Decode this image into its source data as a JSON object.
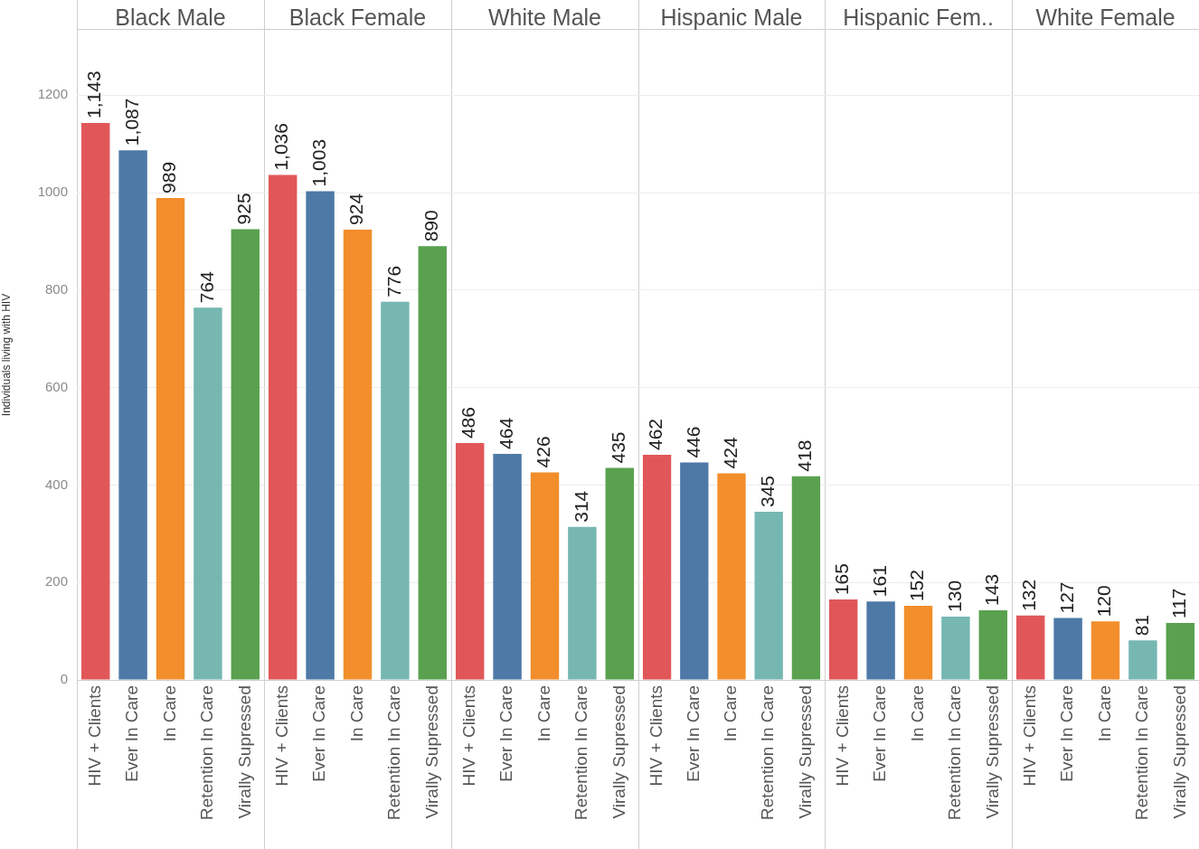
{
  "chart_data": [
    {
      "type": "bar",
      "title": "Black Male",
      "ylabel": "Individuals living with HIV",
      "categories": [
        "HIV + Clients",
        "Ever In Care",
        "In Care",
        "Retention In Care",
        "Virally Supressed"
      ],
      "values": [
        1143,
        1087,
        989,
        764,
        925
      ],
      "value_labels": [
        "1,143",
        "1,087",
        "989",
        "764",
        "925"
      ],
      "colors": [
        "#e15759",
        "#4e79a7",
        "#f28e2b",
        "#76b7b2",
        "#59a14f"
      ],
      "ylim": [
        0,
        1334
      ],
      "yticks": [
        0,
        200,
        400,
        600,
        800,
        1000,
        1200
      ],
      "grid": "y"
    },
    {
      "type": "bar",
      "title": "Black Female",
      "categories": [
        "HIV + Clients",
        "Ever In Care",
        "In Care",
        "Retention In Care",
        "Virally Supressed"
      ],
      "values": [
        1036,
        1003,
        924,
        776,
        890
      ],
      "value_labels": [
        "1,036",
        "1,003",
        "924",
        "776",
        "890"
      ],
      "colors": [
        "#e15759",
        "#4e79a7",
        "#f28e2b",
        "#76b7b2",
        "#59a14f"
      ],
      "ylim": [
        0,
        1334
      ],
      "yticks": [
        0,
        200,
        400,
        600,
        800,
        1000,
        1200
      ],
      "tick_labels": "x",
      "grid": "y"
    },
    {
      "type": "bar",
      "title": "White Male",
      "categories": [
        "HIV + Clients",
        "Ever In Care",
        "In Care",
        "Retention In Care",
        "Virally Supressed"
      ],
      "values": [
        486,
        464,
        426,
        314,
        435
      ],
      "value_labels": [
        "486",
        "464",
        "426",
        "314",
        "435"
      ],
      "colors": [
        "#e15759",
        "#4e79a7",
        "#f28e2b",
        "#76b7b2",
        "#59a14f"
      ],
      "ylim": [
        0,
        1334
      ],
      "yticks": [
        0,
        200,
        400,
        600,
        800,
        1000,
        1200
      ],
      "tick_labels": "x",
      "grid": "y"
    },
    {
      "type": "bar",
      "title": "Hispanic Male",
      "categories": [
        "HIV + Clients",
        "Ever In Care",
        "In Care",
        "Retention In Care",
        "Virally Supressed"
      ],
      "values": [
        462,
        446,
        424,
        345,
        418
      ],
      "value_labels": [
        "462",
        "446",
        "424",
        "345",
        "418"
      ],
      "colors": [
        "#e15759",
        "#4e79a7",
        "#f28e2b",
        "#76b7b2",
        "#59a14f"
      ],
      "ylim": [
        0,
        1334
      ],
      "yticks": [
        0,
        200,
        400,
        600,
        800,
        1000,
        1200
      ],
      "tick_labels": "x",
      "grid": "y"
    },
    {
      "type": "bar",
      "title": "Hispanic Fem..",
      "categories": [
        "HIV + Clients",
        "Ever In Care",
        "In Care",
        "Retention In Care",
        "Virally Supressed"
      ],
      "values": [
        165,
        161,
        152,
        130,
        143
      ],
      "value_labels": [
        "165",
        "161",
        "152",
        "130",
        "143"
      ],
      "colors": [
        "#e15759",
        "#4e79a7",
        "#f28e2b",
        "#76b7b2",
        "#59a14f"
      ],
      "ylim": [
        0,
        1334
      ],
      "yticks": [
        0,
        200,
        400,
        600,
        800,
        1000,
        1200
      ],
      "tick_labels": "x",
      "grid": "y"
    },
    {
      "type": "bar",
      "title": "White Female",
      "categories": [
        "HIV + Clients",
        "Ever In Care",
        "In Care",
        "Retention In Care",
        "Virally Supressed"
      ],
      "values": [
        132,
        127,
        120,
        81,
        117
      ],
      "value_labels": [
        "132",
        "127",
        "120",
        "81",
        "117"
      ],
      "colors": [
        "#e15759",
        "#4e79a7",
        "#f28e2b",
        "#76b7b2",
        "#59a14f"
      ],
      "ylim": [
        0,
        1334
      ],
      "yticks": [
        0,
        200,
        400,
        600,
        800,
        1000,
        1200
      ],
      "tick_labels": "x",
      "grid": "y"
    }
  ]
}
